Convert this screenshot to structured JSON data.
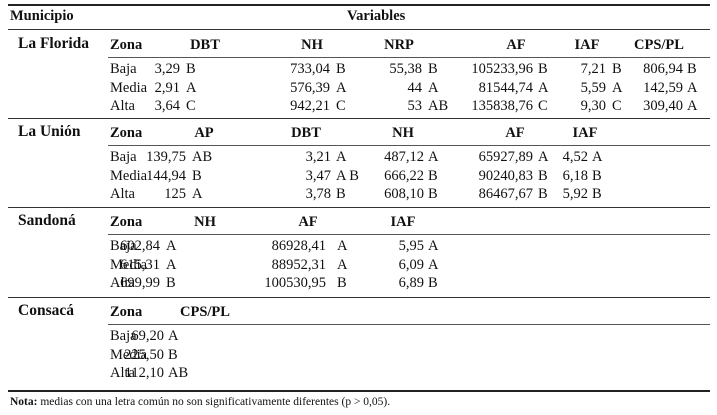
{
  "header": {
    "municipio": "Municipio",
    "variables": "Variables"
  },
  "sections": [
    {
      "name": "La Florida",
      "zona_label": "Zona",
      "columns": [
        "DBT",
        "NH",
        "NRP",
        "AF",
        "IAF",
        "CPS/PL"
      ],
      "rows": [
        {
          "zona": "Baja",
          "cells": [
            [
              "3,29",
              "B"
            ],
            [
              "733,04",
              "B"
            ],
            [
              "55,38",
              "B"
            ],
            [
              "105233,96",
              "B"
            ],
            [
              "7,21",
              "B"
            ],
            [
              "806,94",
              "B"
            ]
          ]
        },
        {
          "zona": "Media",
          "cells": [
            [
              "2,91",
              "A"
            ],
            [
              "576,39",
              "A"
            ],
            [
              "44",
              "A"
            ],
            [
              "81544,74",
              "A"
            ],
            [
              "5,59",
              "A"
            ],
            [
              "142,59",
              "A"
            ]
          ]
        },
        {
          "zona": "Alta",
          "cells": [
            [
              "3,64",
              "C"
            ],
            [
              "942,21",
              "C"
            ],
            [
              "53",
              "AB"
            ],
            [
              "135838,76",
              "C"
            ],
            [
              "9,30",
              "C"
            ],
            [
              "309,40",
              "A"
            ]
          ]
        }
      ]
    },
    {
      "name": "La Unión",
      "zona_label": "Zona",
      "columns": [
        "AP",
        "DBT",
        "NH",
        "AF",
        "IAF"
      ],
      "rows": [
        {
          "zona": "Baja",
          "cells": [
            [
              "139,75",
              "AB"
            ],
            [
              "3,21",
              "A"
            ],
            [
              "487,12",
              "A"
            ],
            [
              "65927,89",
              "A"
            ],
            [
              "4,52",
              "A"
            ]
          ]
        },
        {
          "zona": "Media",
          "cells": [
            [
              "144,94",
              "B"
            ],
            [
              "3,47",
              "A B"
            ],
            [
              "666,22",
              "B"
            ],
            [
              "90240,83",
              "B"
            ],
            [
              "6,18",
              "B"
            ]
          ]
        },
        {
          "zona": "Alta",
          "cells": [
            [
              "125",
              "A"
            ],
            [
              "3,78",
              "B"
            ],
            [
              "608,10",
              "B"
            ],
            [
              "86467,67",
              "B"
            ],
            [
              "5,92",
              "B"
            ]
          ]
        }
      ]
    },
    {
      "name": "Sandoná",
      "zona_label": "Zona",
      "columns": [
        "NH",
        "AF",
        "IAF"
      ],
      "rows": [
        {
          "zona": "Baja",
          "cells": [
            [
              "602,84",
              "A"
            ],
            [
              "86928,41",
              "A"
            ],
            [
              "5,95",
              "A"
            ]
          ]
        },
        {
          "zona": "Media",
          "cells": [
            [
              "615,31",
              "A"
            ],
            [
              "88952,31",
              "A"
            ],
            [
              "6,09",
              "A"
            ]
          ]
        },
        {
          "zona": "Alta",
          "cells": [
            [
              "699,99",
              "B"
            ],
            [
              "100530,95",
              "B"
            ],
            [
              "6,89",
              "B"
            ]
          ]
        }
      ]
    },
    {
      "name": "Consacá",
      "zona_label": "Zona",
      "columns": [
        "CPS/PL"
      ],
      "rows": [
        {
          "zona": "Baja",
          "cells": [
            [
              "69,20",
              "A"
            ]
          ]
        },
        {
          "zona": "Media",
          "cells": [
            [
              "225,50",
              "B"
            ]
          ]
        },
        {
          "zona": "Alta",
          "cells": [
            [
              "112,10",
              "AB"
            ]
          ]
        }
      ]
    }
  ],
  "note": {
    "label": "Nota:",
    "text": "medias con una letra común no son significativamente diferentes (p > 0,05)."
  }
}
